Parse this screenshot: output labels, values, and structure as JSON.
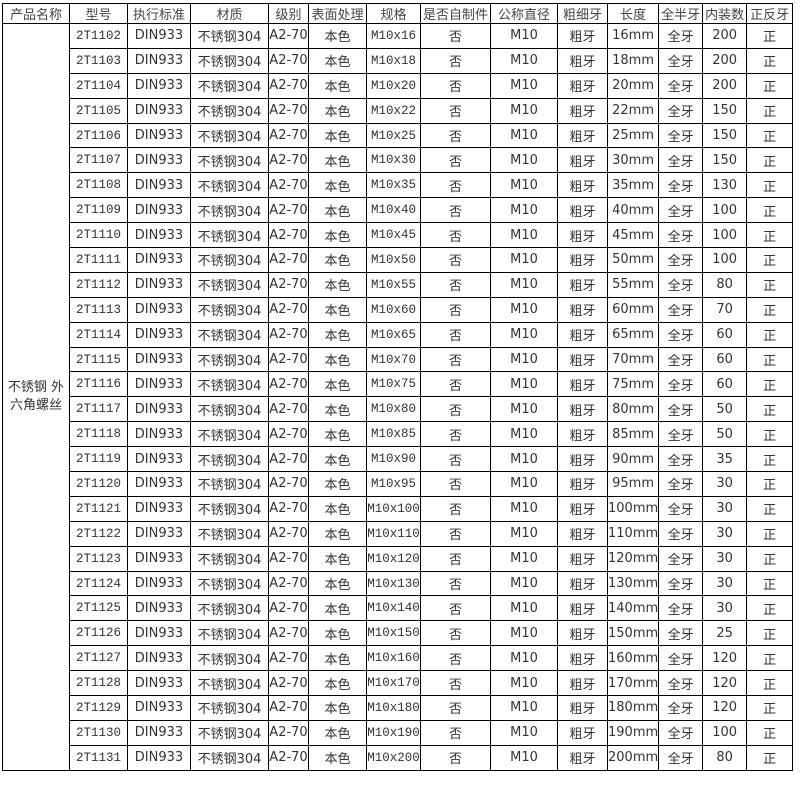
{
  "table": {
    "headers": [
      "产品名称",
      "型号",
      "执行标准",
      "材质",
      "级别",
      "表面处理",
      "规格",
      "是否自制件",
      "公称直径",
      "粗细牙",
      "长度",
      "全半牙",
      "内装数",
      "正反牙"
    ],
    "product_name": "不锈钢 外六角螺丝",
    "rows": [
      [
        "2T1102",
        "DIN933",
        "不锈钢304",
        "A2-70",
        "本色",
        "M10x16",
        "否",
        "M10",
        "粗牙",
        "16mm",
        "全牙",
        "200",
        "正"
      ],
      [
        "2T1103",
        "DIN933",
        "不锈钢304",
        "A2-70",
        "本色",
        "M10x18",
        "否",
        "M10",
        "粗牙",
        "18mm",
        "全牙",
        "200",
        "正"
      ],
      [
        "2T1104",
        "DIN933",
        "不锈钢304",
        "A2-70",
        "本色",
        "M10x20",
        "否",
        "M10",
        "粗牙",
        "20mm",
        "全牙",
        "200",
        "正"
      ],
      [
        "2T1105",
        "DIN933",
        "不锈钢304",
        "A2-70",
        "本色",
        "M10x22",
        "否",
        "M10",
        "粗牙",
        "22mm",
        "全牙",
        "150",
        "正"
      ],
      [
        "2T1106",
        "DIN933",
        "不锈钢304",
        "A2-70",
        "本色",
        "M10x25",
        "否",
        "M10",
        "粗牙",
        "25mm",
        "全牙",
        "150",
        "正"
      ],
      [
        "2T1107",
        "DIN933",
        "不锈钢304",
        "A2-70",
        "本色",
        "M10x30",
        "否",
        "M10",
        "粗牙",
        "30mm",
        "全牙",
        "150",
        "正"
      ],
      [
        "2T1108",
        "DIN933",
        "不锈钢304",
        "A2-70",
        "本色",
        "M10x35",
        "否",
        "M10",
        "粗牙",
        "35mm",
        "全牙",
        "130",
        "正"
      ],
      [
        "2T1109",
        "DIN933",
        "不锈钢304",
        "A2-70",
        "本色",
        "M10x40",
        "否",
        "M10",
        "粗牙",
        "40mm",
        "全牙",
        "100",
        "正"
      ],
      [
        "2T1110",
        "DIN933",
        "不锈钢304",
        "A2-70",
        "本色",
        "M10x45",
        "否",
        "M10",
        "粗牙",
        "45mm",
        "全牙",
        "100",
        "正"
      ],
      [
        "2T1111",
        "DIN933",
        "不锈钢304",
        "A2-70",
        "本色",
        "M10x50",
        "否",
        "M10",
        "粗牙",
        "50mm",
        "全牙",
        "100",
        "正"
      ],
      [
        "2T1112",
        "DIN933",
        "不锈钢304",
        "A2-70",
        "本色",
        "M10x55",
        "否",
        "M10",
        "粗牙",
        "55mm",
        "全牙",
        "80",
        "正"
      ],
      [
        "2T1113",
        "DIN933",
        "不锈钢304",
        "A2-70",
        "本色",
        "M10x60",
        "否",
        "M10",
        "粗牙",
        "60mm",
        "全牙",
        "70",
        "正"
      ],
      [
        "2T1114",
        "DIN933",
        "不锈钢304",
        "A2-70",
        "本色",
        "M10x65",
        "否",
        "M10",
        "粗牙",
        "65mm",
        "全牙",
        "60",
        "正"
      ],
      [
        "2T1115",
        "DIN933",
        "不锈钢304",
        "A2-70",
        "本色",
        "M10x70",
        "否",
        "M10",
        "粗牙",
        "70mm",
        "全牙",
        "60",
        "正"
      ],
      [
        "2T1116",
        "DIN933",
        "不锈钢304",
        "A2-70",
        "本色",
        "M10x75",
        "否",
        "M10",
        "粗牙",
        "75mm",
        "全牙",
        "60",
        "正"
      ],
      [
        "2T1117",
        "DIN933",
        "不锈钢304",
        "A2-70",
        "本色",
        "M10x80",
        "否",
        "M10",
        "粗牙",
        "80mm",
        "全牙",
        "50",
        "正"
      ],
      [
        "2T1118",
        "DIN933",
        "不锈钢304",
        "A2-70",
        "本色",
        "M10x85",
        "否",
        "M10",
        "粗牙",
        "85mm",
        "全牙",
        "50",
        "正"
      ],
      [
        "2T1119",
        "DIN933",
        "不锈钢304",
        "A2-70",
        "本色",
        "M10x90",
        "否",
        "M10",
        "粗牙",
        "90mm",
        "全牙",
        "35",
        "正"
      ],
      [
        "2T1120",
        "DIN933",
        "不锈钢304",
        "A2-70",
        "本色",
        "M10x95",
        "否",
        "M10",
        "粗牙",
        "95mm",
        "全牙",
        "30",
        "正"
      ],
      [
        "2T1121",
        "DIN933",
        "不锈钢304",
        "A2-70",
        "本色",
        "M10x100",
        "否",
        "M10",
        "粗牙",
        "100mm",
        "全牙",
        "30",
        "正"
      ],
      [
        "2T1122",
        "DIN933",
        "不锈钢304",
        "A2-70",
        "本色",
        "M10x110",
        "否",
        "M10",
        "粗牙",
        "110mm",
        "全牙",
        "30",
        "正"
      ],
      [
        "2T1123",
        "DIN933",
        "不锈钢304",
        "A2-70",
        "本色",
        "M10x120",
        "否",
        "M10",
        "粗牙",
        "120mm",
        "全牙",
        "30",
        "正"
      ],
      [
        "2T1124",
        "DIN933",
        "不锈钢304",
        "A2-70",
        "本色",
        "M10x130",
        "否",
        "M10",
        "粗牙",
        "130mm",
        "全牙",
        "30",
        "正"
      ],
      [
        "2T1125",
        "DIN933",
        "不锈钢304",
        "A2-70",
        "本色",
        "M10x140",
        "否",
        "M10",
        "粗牙",
        "140mm",
        "全牙",
        "30",
        "正"
      ],
      [
        "2T1126",
        "DIN933",
        "不锈钢304",
        "A2-70",
        "本色",
        "M10x150",
        "否",
        "M10",
        "粗牙",
        "150mm",
        "全牙",
        "25",
        "正"
      ],
      [
        "2T1127",
        "DIN933",
        "不锈钢304",
        "A2-70",
        "本色",
        "M10x160",
        "否",
        "M10",
        "粗牙",
        "160mm",
        "全牙",
        "120",
        "正"
      ],
      [
        "2T1128",
        "DIN933",
        "不锈钢304",
        "A2-70",
        "本色",
        "M10x170",
        "否",
        "M10",
        "粗牙",
        "170mm",
        "全牙",
        "120",
        "正"
      ],
      [
        "2T1129",
        "DIN933",
        "不锈钢304",
        "A2-70",
        "本色",
        "M10x180",
        "否",
        "M10",
        "粗牙",
        "180mm",
        "全牙",
        "120",
        "正"
      ],
      [
        "2T1130",
        "DIN933",
        "不锈钢304",
        "A2-70",
        "本色",
        "M10x190",
        "否",
        "M10",
        "粗牙",
        "190mm",
        "全牙",
        "100",
        "正"
      ],
      [
        "2T1131",
        "DIN933",
        "不锈钢304",
        "A2-70",
        "本色",
        "M10x200",
        "否",
        "M10",
        "粗牙",
        "200mm",
        "全牙",
        "80",
        "正"
      ]
    ]
  }
}
